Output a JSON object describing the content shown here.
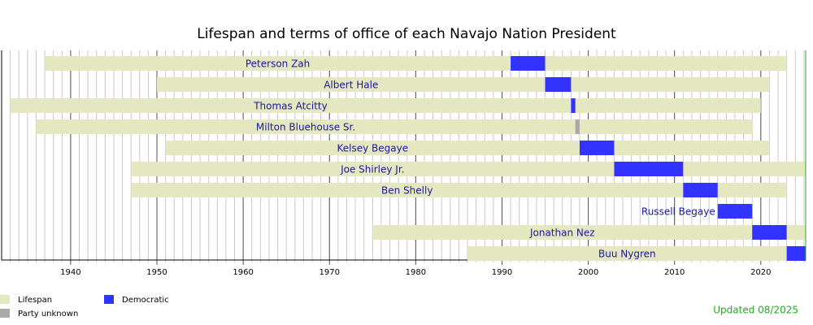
{
  "chart_data": {
    "type": "timeline",
    "title": "Lifespan and terms of office of each Navajo Nation President",
    "xlim": [
      1932,
      2025.2
    ],
    "xticks": [
      1940,
      1950,
      1960,
      1970,
      1980,
      1990,
      2000,
      2010,
      2020
    ],
    "minor_xtick_step": 1,
    "grid": true,
    "lifespan_color": "#e4e7bf",
    "presidents": [
      {
        "name": "Peterson Zah",
        "born": 1937,
        "died": 2023,
        "term_start": 1991,
        "term_end": 1995,
        "color": "#3333ff"
      },
      {
        "name": "Albert Hale",
        "born": 1950,
        "died": 2021,
        "term_start": 1995,
        "term_end": 1998,
        "color": "#3333ff"
      },
      {
        "name": "Thomas Atcitty",
        "born": 1933,
        "died": 2020,
        "term_start": 1998,
        "term_end": 1998.5,
        "color": "#3333ff"
      },
      {
        "name": "Milton Bluehouse Sr.",
        "born": 1936,
        "died": 2019,
        "term_start": 1998.5,
        "term_end": 1999,
        "color": "#aaaaaa"
      },
      {
        "name": "Kelsey Begaye",
        "born": 1951,
        "died": 2021,
        "term_start": 1999,
        "term_end": 2003,
        "color": "#3333ff"
      },
      {
        "name": "Joe Shirley Jr.",
        "born": 1947,
        "died": null,
        "term_start": 2003,
        "term_end": 2011,
        "color": "#3333ff"
      },
      {
        "name": "Ben Shelly",
        "born": 1947,
        "died": 2023,
        "term_start": 2011,
        "term_end": 2015,
        "color": "#3333ff"
      },
      {
        "name": "Russell Begaye",
        "born": null,
        "died": null,
        "term_start": 2015,
        "term_end": 2019,
        "color": "#3333ff"
      },
      {
        "name": "Jonathan Nez",
        "born": 1975,
        "died": null,
        "term_start": 2019,
        "term_end": 2023,
        "color": "#3333ff"
      },
      {
        "name": "Buu Nygren",
        "born": 1986,
        "died": null,
        "term_start": 2023,
        "term_end": null,
        "color": "#3333ff"
      }
    ],
    "legend": [
      {
        "label": "Lifespan",
        "color": "#e4e7bf"
      },
      {
        "label": "Party unknown",
        "color": "#aaaaaa"
      },
      {
        "label": "Democratic",
        "color": "#3333ff"
      }
    ],
    "updated": "Updated 08/2025"
  }
}
